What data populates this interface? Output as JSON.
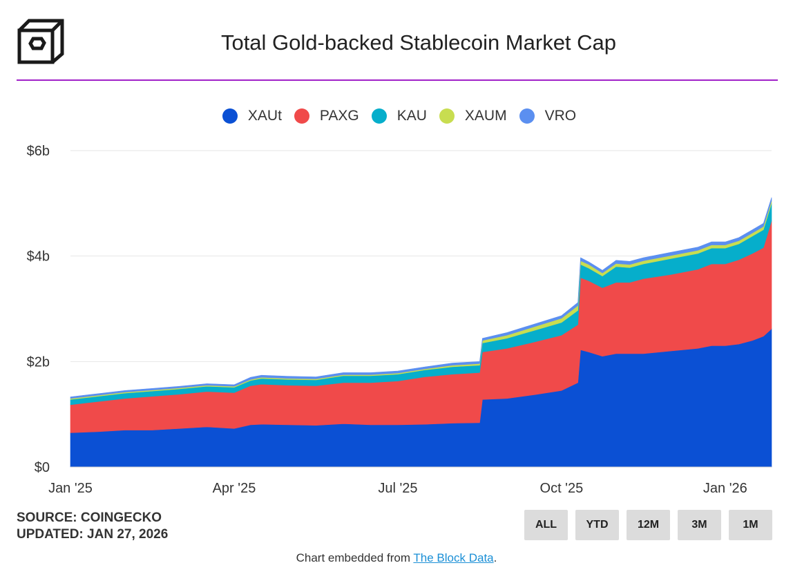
{
  "header": {
    "title": "Total Gold-backed Stablecoin Market Cap"
  },
  "chart_data": {
    "type": "area",
    "stacked": true,
    "title": "Total Gold-backed Stablecoin Market Cap",
    "xlabel": "",
    "ylabel": "",
    "ylim": [
      0,
      6
    ],
    "y_unit": "billions USD",
    "y_ticks": [
      {
        "value": 0,
        "label": "$0"
      },
      {
        "value": 2,
        "label": "$2b"
      },
      {
        "value": 4,
        "label": "$4b"
      },
      {
        "value": 6,
        "label": "$6b"
      }
    ],
    "x_ticks": [
      {
        "value": 0,
        "label": "Jan '25"
      },
      {
        "value": 3,
        "label": "Apr '25"
      },
      {
        "value": 6,
        "label": "Jul '25"
      },
      {
        "value": 9,
        "label": "Oct '25"
      },
      {
        "value": 12,
        "label": "Jan '26"
      }
    ],
    "xlim": [
      0,
      12.85
    ],
    "x": [
      0,
      0.5,
      1,
      1.5,
      2,
      2.5,
      3,
      3.3,
      3.5,
      4,
      4.5,
      5,
      5.5,
      6,
      6.5,
      7,
      7.5,
      7.55,
      8,
      8.5,
      9,
      9.3,
      9.35,
      9.5,
      9.75,
      10,
      10.25,
      10.5,
      11,
      11.5,
      11.75,
      12,
      12.25,
      12.5,
      12.7,
      12.85
    ],
    "series": [
      {
        "name": "XAUt",
        "color": "#0b50d4",
        "values": [
          0.65,
          0.67,
          0.7,
          0.7,
          0.73,
          0.76,
          0.73,
          0.8,
          0.81,
          0.8,
          0.79,
          0.82,
          0.8,
          0.8,
          0.81,
          0.83,
          0.84,
          1.28,
          1.3,
          1.37,
          1.45,
          1.6,
          2.22,
          2.18,
          2.1,
          2.15,
          2.15,
          2.15,
          2.2,
          2.25,
          2.3,
          2.3,
          2.33,
          2.4,
          2.48,
          2.62
        ]
      },
      {
        "name": "PAXG",
        "color": "#f04a4a",
        "values": [
          0.53,
          0.57,
          0.6,
          0.64,
          0.65,
          0.67,
          0.68,
          0.74,
          0.76,
          0.75,
          0.75,
          0.78,
          0.8,
          0.83,
          0.9,
          0.93,
          0.95,
          0.9,
          0.95,
          1.0,
          1.05,
          1.1,
          1.37,
          1.35,
          1.3,
          1.35,
          1.35,
          1.42,
          1.45,
          1.5,
          1.55,
          1.55,
          1.6,
          1.65,
          1.68,
          2.05
        ]
      },
      {
        "name": "KAU",
        "color": "#06aecb",
        "values": [
          0.1,
          0.1,
          0.1,
          0.1,
          0.1,
          0.1,
          0.1,
          0.1,
          0.11,
          0.11,
          0.11,
          0.13,
          0.13,
          0.13,
          0.13,
          0.14,
          0.14,
          0.17,
          0.19,
          0.22,
          0.24,
          0.27,
          0.25,
          0.24,
          0.22,
          0.3,
          0.28,
          0.28,
          0.3,
          0.3,
          0.3,
          0.3,
          0.3,
          0.33,
          0.34,
          0.33
        ]
      },
      {
        "name": "XAUM",
        "color": "#c8dd50",
        "values": [
          0.02,
          0.02,
          0.02,
          0.02,
          0.02,
          0.02,
          0.02,
          0.02,
          0.02,
          0.02,
          0.02,
          0.02,
          0.02,
          0.02,
          0.02,
          0.03,
          0.03,
          0.05,
          0.06,
          0.07,
          0.08,
          0.09,
          0.07,
          0.07,
          0.06,
          0.06,
          0.06,
          0.06,
          0.06,
          0.06,
          0.06,
          0.06,
          0.06,
          0.06,
          0.06,
          0.05
        ]
      },
      {
        "name": "VRO",
        "color": "#5b8ff0",
        "values": [
          0.03,
          0.03,
          0.03,
          0.03,
          0.03,
          0.03,
          0.03,
          0.04,
          0.04,
          0.04,
          0.04,
          0.04,
          0.04,
          0.04,
          0.04,
          0.04,
          0.04,
          0.04,
          0.05,
          0.05,
          0.05,
          0.06,
          0.06,
          0.05,
          0.05,
          0.06,
          0.06,
          0.06,
          0.06,
          0.06,
          0.06,
          0.06,
          0.06,
          0.06,
          0.06,
          0.06
        ]
      }
    ]
  },
  "legend": {
    "items": [
      {
        "label": "XAUt",
        "color": "#0b50d4"
      },
      {
        "label": "PAXG",
        "color": "#f04a4a"
      },
      {
        "label": "KAU",
        "color": "#06aecb"
      },
      {
        "label": "XAUM",
        "color": "#c8dd50"
      },
      {
        "label": "VRO",
        "color": "#5b8ff0"
      }
    ]
  },
  "source": {
    "line1": "SOURCE: COINGECKO",
    "line2": "UPDATED: JAN 27, 2026"
  },
  "range_buttons": [
    "ALL",
    "YTD",
    "12M",
    "3M",
    "1M"
  ],
  "footer": {
    "prefix": "Chart embedded from ",
    "link": "The Block Data",
    "suffix": "."
  }
}
